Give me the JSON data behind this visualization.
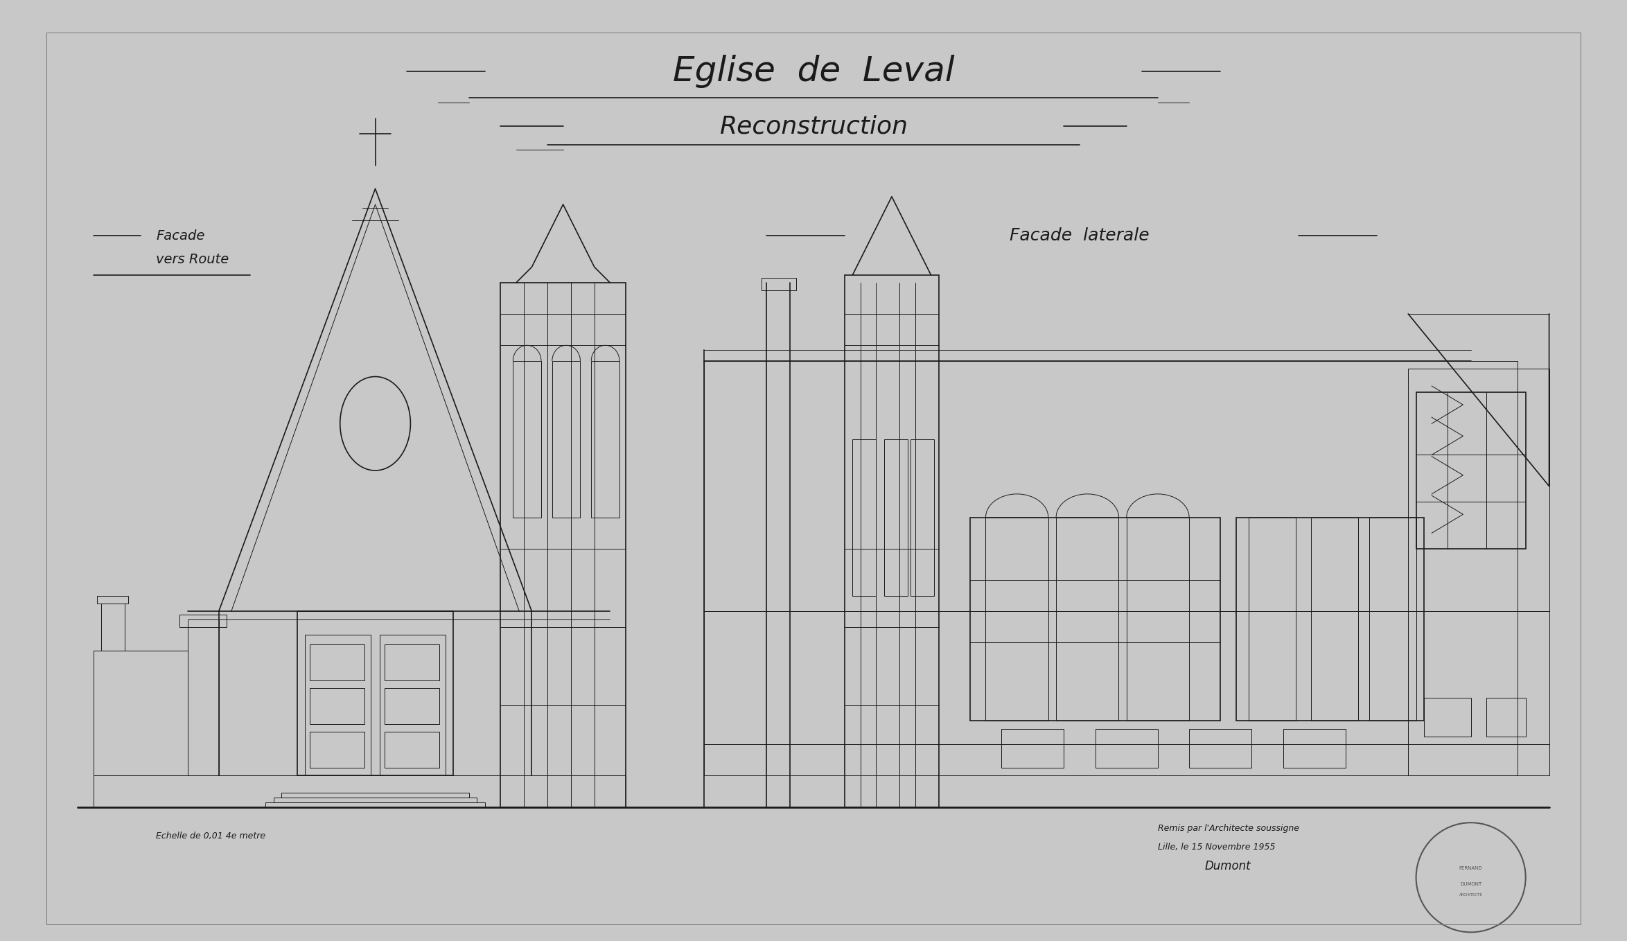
{
  "background_color": "#c8c8c8",
  "paper_color": "#c0c0c0",
  "line_color": "#1a1a1a",
  "title_line1": "Eglise de Leval",
  "title_line2": "Reconstruction",
  "label_facade_route": "Facade\nvers Route",
  "label_facade_laterale": "Facade laterale",
  "label_echelle": "Echelle de 0,01 4e metre",
  "label_signature": "Remis par l'Architecte soussigne\nLille, le 15 Novembre 1955\nDumont",
  "fig_width": 23.48,
  "fig_height": 13.58,
  "dpi": 100
}
